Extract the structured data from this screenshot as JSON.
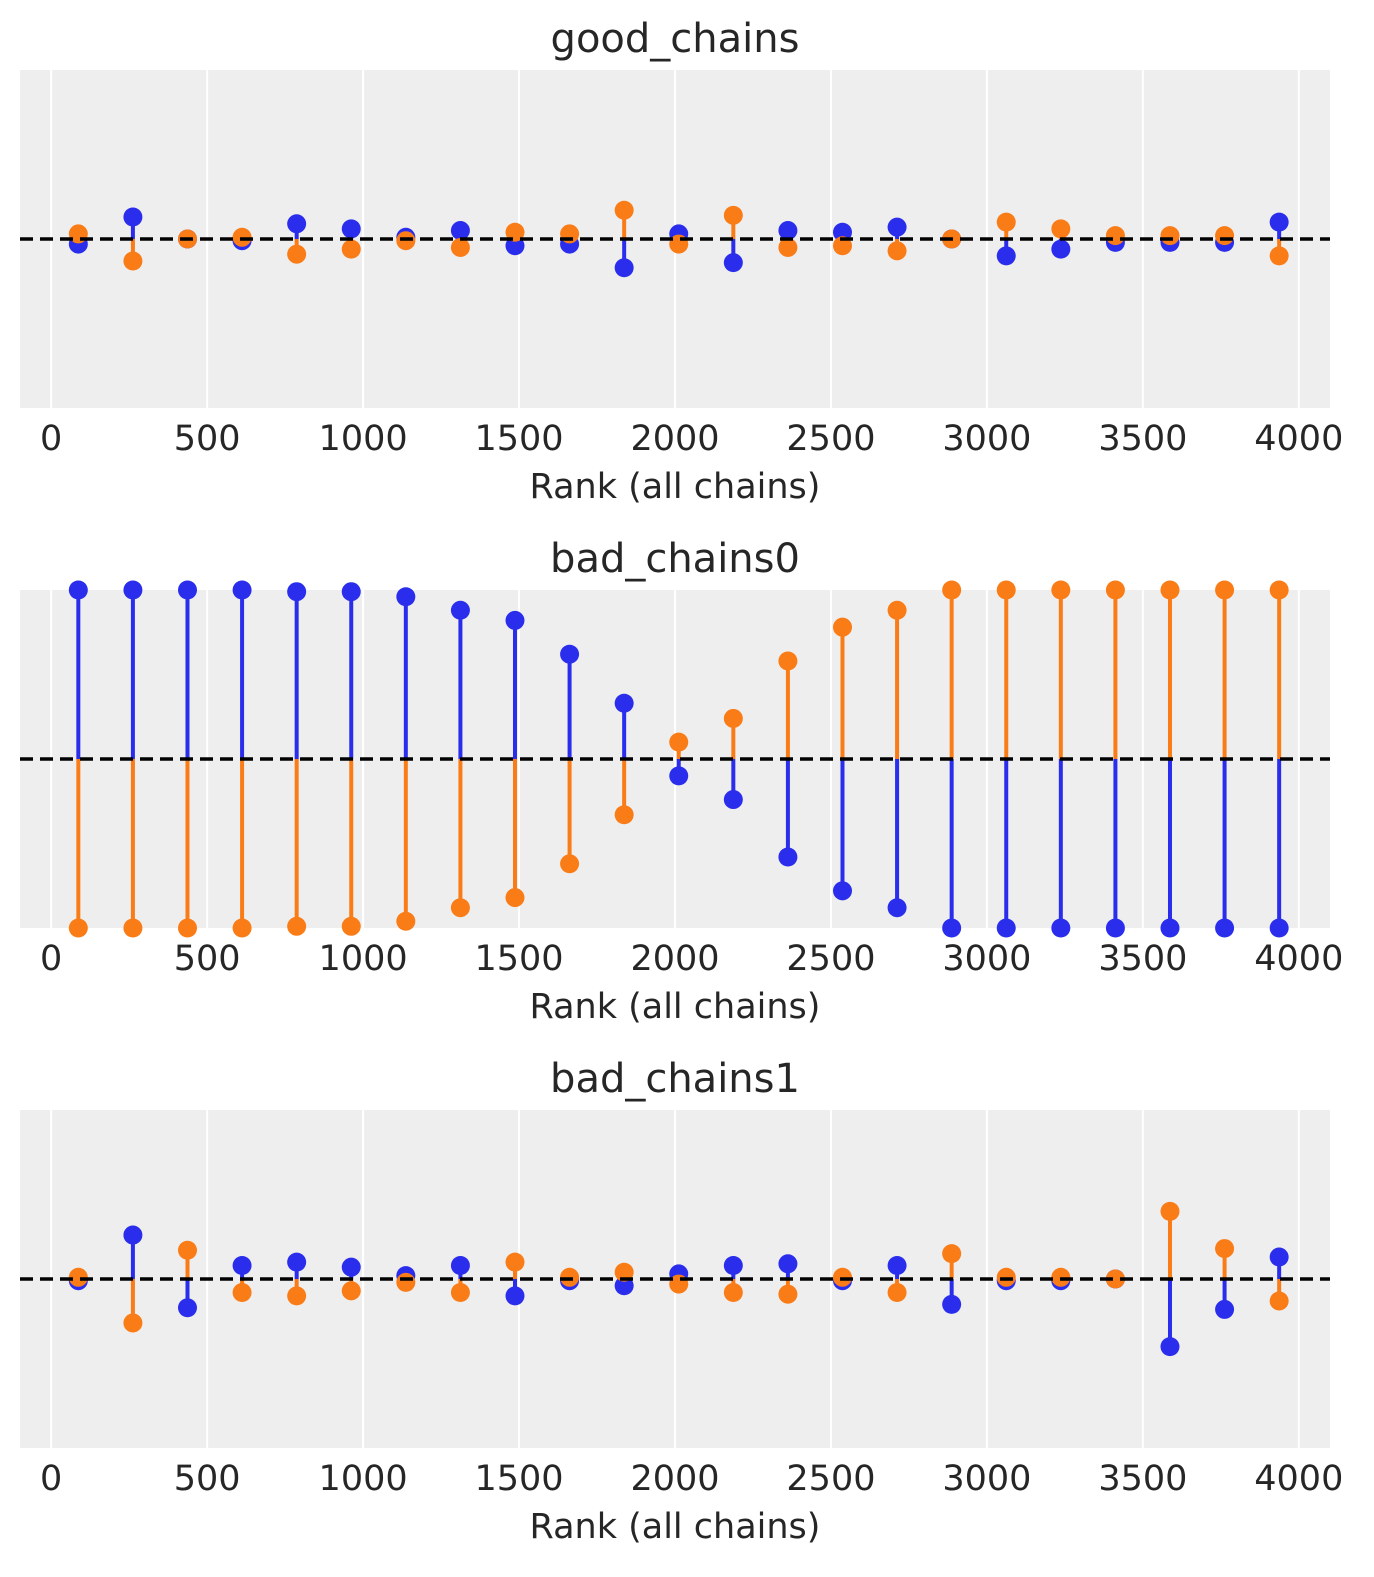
{
  "colors": {
    "chain0": "#2a2eec",
    "chain1": "#fa7c17",
    "panel_bg": "#eeeeee",
    "grid": "#ffffff",
    "refline": "#000000"
  },
  "chart_data": [
    {
      "type": "rank_vlines",
      "title": "good_chains",
      "xlabel": "Rank (all chains)",
      "xlim": [
        -100,
        4100
      ],
      "xticks": [
        0,
        500,
        1000,
        1500,
        2000,
        2500,
        3000,
        3500,
        4000
      ],
      "ylim": [
        -1,
        1
      ],
      "grid": "vertical",
      "bin_centers": [
        87,
        262,
        437,
        612,
        787,
        962,
        1137,
        1312,
        1487,
        1662,
        1837,
        2012,
        2187,
        2362,
        2537,
        2712,
        2887,
        3062,
        3237,
        3412,
        3587,
        3762,
        3937
      ],
      "series": [
        {
          "values": [
            -0.03,
            0.13,
            0.0,
            -0.01,
            0.09,
            0.06,
            0.01,
            0.05,
            -0.04,
            -0.03,
            -0.17,
            0.03,
            -0.14,
            0.05,
            0.04,
            0.07,
            0.0,
            -0.1,
            -0.06,
            -0.02,
            -0.02,
            -0.02,
            0.1
          ]
        },
        {
          "values": [
            0.03,
            -0.13,
            0.0,
            0.01,
            -0.09,
            -0.06,
            -0.01,
            -0.05,
            0.04,
            0.03,
            0.17,
            -0.03,
            0.14,
            -0.05,
            -0.04,
            -0.07,
            0.0,
            0.1,
            0.06,
            0.02,
            0.02,
            0.02,
            -0.1
          ]
        }
      ]
    },
    {
      "type": "rank_vlines",
      "title": "bad_chains0",
      "xlabel": "Rank (all chains)",
      "xlim": [
        -100,
        4100
      ],
      "xticks": [
        0,
        500,
        1000,
        1500,
        2000,
        2500,
        3000,
        3500,
        4000
      ],
      "ylim": [
        -1,
        1
      ],
      "grid": "vertical",
      "bin_centers": [
        87,
        262,
        437,
        612,
        787,
        962,
        1137,
        1312,
        1487,
        1662,
        1837,
        2012,
        2187,
        2362,
        2537,
        2712,
        2887,
        3062,
        3237,
        3412,
        3587,
        3762,
        3937
      ],
      "series": [
        {
          "values": [
            1.0,
            1.0,
            1.0,
            1.0,
            0.99,
            0.99,
            0.96,
            0.88,
            0.82,
            0.62,
            0.33,
            -0.1,
            -0.24,
            -0.58,
            -0.78,
            -0.88,
            -1.0,
            -1.0,
            -1.0,
            -1.0,
            -1.0,
            -1.0,
            -1.0
          ]
        },
        {
          "values": [
            -1.0,
            -1.0,
            -1.0,
            -1.0,
            -0.99,
            -0.99,
            -0.96,
            -0.88,
            -0.82,
            -0.62,
            -0.33,
            0.1,
            0.24,
            0.58,
            0.78,
            0.88,
            1.0,
            1.0,
            1.0,
            1.0,
            1.0,
            1.0,
            1.0
          ]
        }
      ]
    },
    {
      "type": "rank_vlines",
      "title": "bad_chains1",
      "xlabel": "Rank (all chains)",
      "xlim": [
        -100,
        4100
      ],
      "xticks": [
        0,
        500,
        1000,
        1500,
        2000,
        2500,
        3000,
        3500,
        4000
      ],
      "ylim": [
        -1,
        1
      ],
      "grid": "vertical",
      "bin_centers": [
        87,
        262,
        437,
        612,
        787,
        962,
        1137,
        1312,
        1487,
        1662,
        1837,
        2012,
        2187,
        2362,
        2537,
        2712,
        2887,
        3062,
        3237,
        3412,
        3587,
        3762,
        3937
      ],
      "series": [
        {
          "values": [
            -0.01,
            0.26,
            -0.17,
            0.08,
            0.1,
            0.07,
            0.02,
            0.08,
            -0.1,
            -0.01,
            -0.04,
            0.03,
            0.08,
            0.09,
            -0.01,
            0.08,
            -0.15,
            -0.01,
            -0.01,
            0.0,
            -0.4,
            -0.18,
            0.13
          ]
        },
        {
          "values": [
            0.01,
            -0.26,
            0.17,
            -0.08,
            -0.1,
            -0.07,
            -0.02,
            -0.08,
            0.1,
            0.01,
            0.04,
            -0.03,
            -0.08,
            -0.09,
            0.01,
            -0.08,
            0.15,
            0.01,
            0.01,
            0.0,
            0.4,
            0.18,
            -0.13
          ]
        }
      ]
    }
  ]
}
